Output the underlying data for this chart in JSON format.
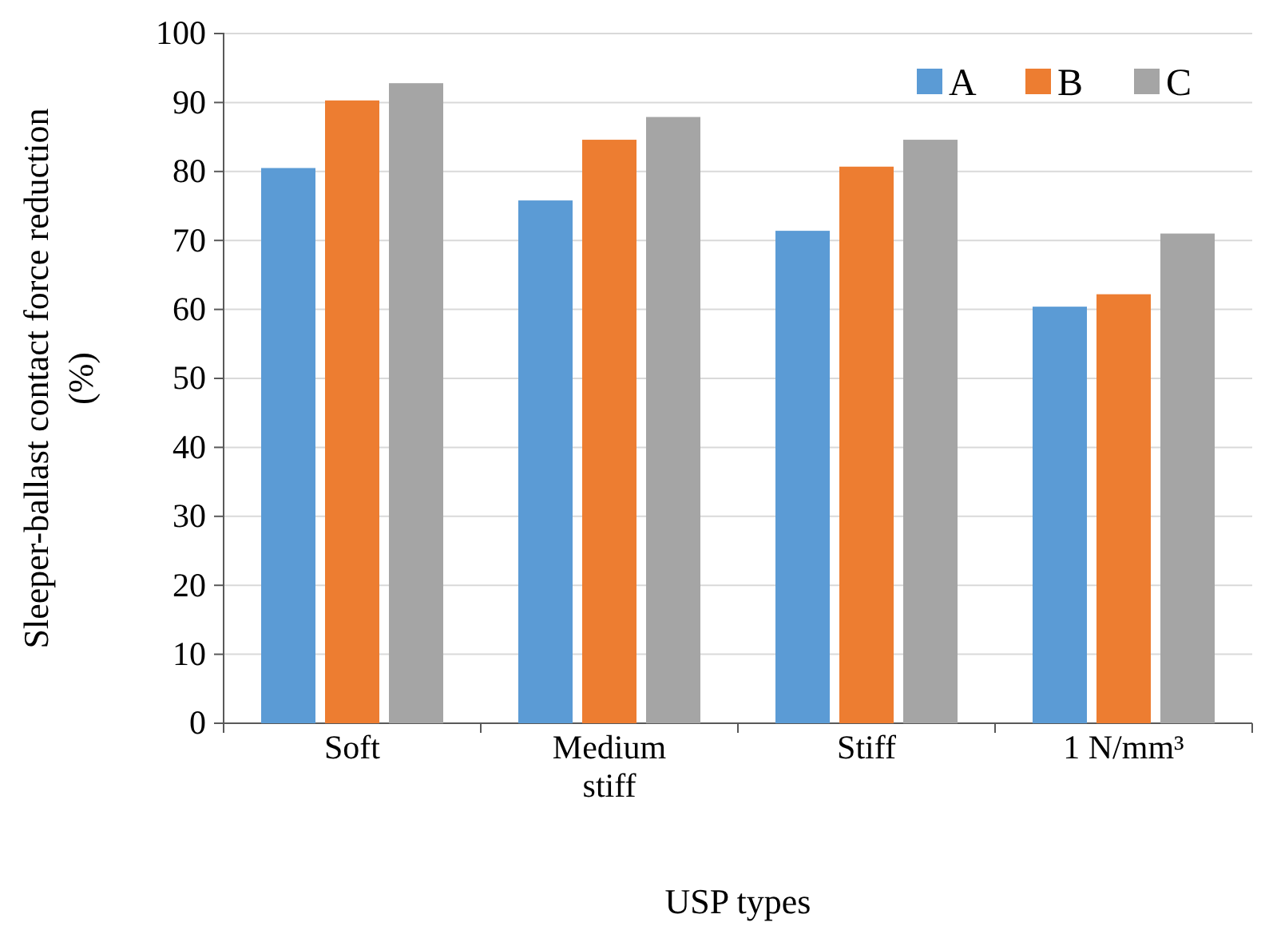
{
  "chart_data": {
    "type": "bar",
    "xlabel": "USP types",
    "ylabel": "Sleeper-ballast contact force reduction (%)",
    "categories": [
      "Soft",
      "Medium stiff",
      "Stiff",
      "1 N/mm³"
    ],
    "series": [
      {
        "name": "A",
        "color": "#5b9bd5",
        "values": [
          80.5,
          75.8,
          71.4,
          60.4
        ]
      },
      {
        "name": "B",
        "color": "#ed7d31",
        "values": [
          90.3,
          84.6,
          80.7,
          62.2
        ]
      },
      {
        "name": "C",
        "color": "#a5a5a5",
        "values": [
          92.8,
          87.9,
          84.6,
          71.0
        ]
      }
    ],
    "ylim": [
      0,
      100
    ],
    "yticks": [
      0,
      10,
      20,
      30,
      40,
      50,
      60,
      70,
      80,
      90,
      100
    ],
    "grid": "y",
    "legend": "top right"
  }
}
